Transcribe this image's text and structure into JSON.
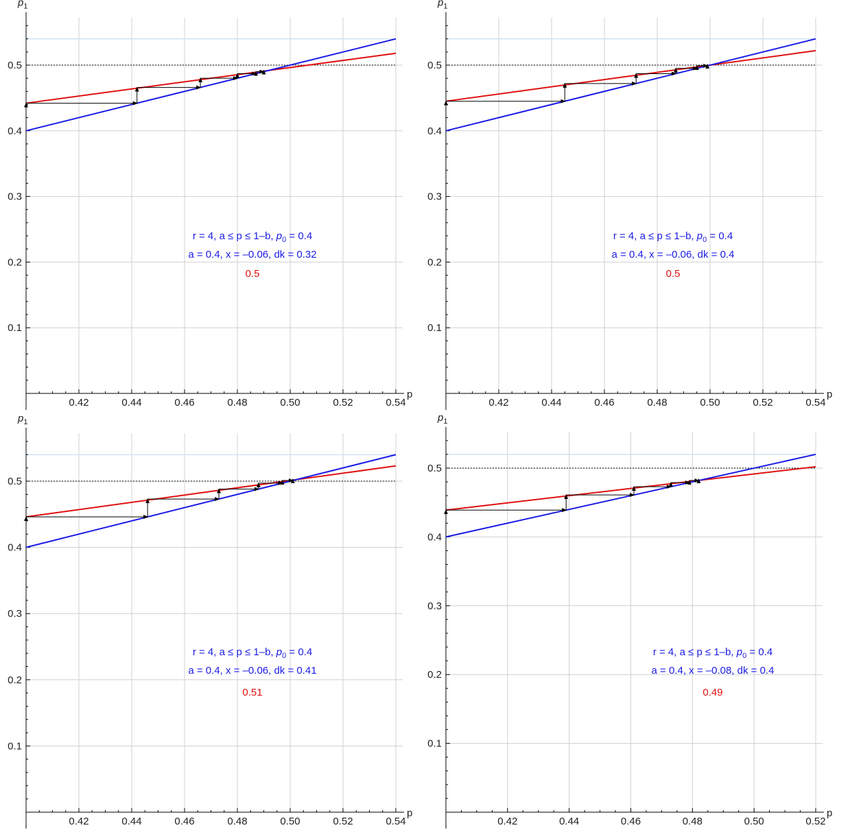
{
  "chart_data": [
    {
      "type": "line",
      "xlabel": "p",
      "ylabel": "p",
      "ylabel_sub": "1",
      "xlim": [
        0.4,
        0.545
      ],
      "ylim": [
        0.0,
        0.56
      ],
      "xticks": [
        "0.42",
        "0.44",
        "0.46",
        "0.48",
        "0.50",
        "0.52",
        "0.54"
      ],
      "yticks": [
        "0.1",
        "0.2",
        "0.3",
        "0.4",
        "0.5"
      ],
      "grid": true,
      "reference_lines": {
        "light_blue_y": 0.54,
        "dotted_y": 0.5
      },
      "series": [
        {
          "color": "#e01010",
          "x": [
            0.4,
            0.54
          ],
          "y": [
            0.442,
            0.518
          ]
        },
        {
          "color": "#1a1ae6",
          "x": [
            0.4,
            0.54
          ],
          "y": [
            0.4,
            0.54
          ]
        }
      ],
      "cobweb": [
        [
          0.4,
          0.442
        ],
        [
          0.442,
          0.466
        ],
        [
          0.466,
          0.48
        ],
        [
          0.48,
          0.487
        ],
        [
          0.487,
          0.49
        ],
        [
          0.49,
          0.492
        ]
      ],
      "annotation_line1": "r = 4, a ≤ p ≤ 1–b, ",
      "annotation_p0": "p",
      "annotation_p0_sub": "0",
      "annotation_p0_val": " = 0.4",
      "annotation_line2": "a = 0.4, x = –0.06, dk = 0.32",
      "annotation_value": "0.5"
    },
    {
      "type": "line",
      "xlabel": "p",
      "ylabel": "p",
      "ylabel_sub": "1",
      "xlim": [
        0.4,
        0.545
      ],
      "ylim": [
        0.0,
        0.56
      ],
      "xticks": [
        "0.42",
        "0.44",
        "0.46",
        "0.48",
        "0.50",
        "0.52",
        "0.54"
      ],
      "yticks": [
        "0.1",
        "0.2",
        "0.3",
        "0.4",
        "0.5"
      ],
      "grid": true,
      "reference_lines": {
        "light_blue_y": 0.54,
        "dotted_y": 0.5
      },
      "series": [
        {
          "color": "#e01010",
          "x": [
            0.4,
            0.54
          ],
          "y": [
            0.445,
            0.522
          ]
        },
        {
          "color": "#1a1ae6",
          "x": [
            0.4,
            0.54
          ],
          "y": [
            0.4,
            0.54
          ]
        }
      ],
      "cobweb": [
        [
          0.4,
          0.445
        ],
        [
          0.445,
          0.472
        ],
        [
          0.472,
          0.487
        ],
        [
          0.487,
          0.495
        ],
        [
          0.495,
          0.499
        ],
        [
          0.499,
          0.501
        ]
      ],
      "annotation_line1": "r = 4, a ≤ p ≤ 1–b, ",
      "annotation_p0": "p",
      "annotation_p0_sub": "0",
      "annotation_p0_val": " = 0.4",
      "annotation_line2": "a = 0.4, x = –0.06, dk = 0.4",
      "annotation_value": "0.5"
    },
    {
      "type": "line",
      "xlabel": "p",
      "ylabel": "p",
      "ylabel_sub": "1",
      "xlim": [
        0.4,
        0.545
      ],
      "ylim": [
        0.0,
        0.56
      ],
      "xticks": [
        "0.42",
        "0.44",
        "0.46",
        "0.48",
        "0.50",
        "0.52",
        "0.54"
      ],
      "yticks": [
        "0.1",
        "0.2",
        "0.3",
        "0.4",
        "0.5"
      ],
      "grid": true,
      "reference_lines": {
        "light_blue_y": 0.54,
        "dotted_y": 0.5
      },
      "series": [
        {
          "color": "#e01010",
          "x": [
            0.4,
            0.54
          ],
          "y": [
            0.446,
            0.523
          ]
        },
        {
          "color": "#1a1ae6",
          "x": [
            0.4,
            0.54
          ],
          "y": [
            0.4,
            0.54
          ]
        }
      ],
      "cobweb": [
        [
          0.4,
          0.446
        ],
        [
          0.446,
          0.473
        ],
        [
          0.473,
          0.488
        ],
        [
          0.488,
          0.497
        ],
        [
          0.497,
          0.501
        ],
        [
          0.501,
          0.503
        ]
      ],
      "annotation_line1": "r = 4, a ≤ p ≤ 1–b, ",
      "annotation_p0": "p",
      "annotation_p0_sub": "0",
      "annotation_p0_val": " = 0.4",
      "annotation_line2": "a = 0.4, x = –0.06, dk = 0.41",
      "annotation_value": "0.51"
    },
    {
      "type": "line",
      "xlabel": "p",
      "ylabel": "p",
      "ylabel_sub": "1",
      "xlim": [
        0.4,
        0.525
      ],
      "ylim": [
        0.0,
        0.54
      ],
      "xticks": [
        "0.42",
        "0.44",
        "0.46",
        "0.48",
        "0.50",
        "0.52"
      ],
      "yticks": [
        "0.1",
        "0.2",
        "0.3",
        "0.4",
        "0.5"
      ],
      "grid": true,
      "reference_lines": {
        "light_blue_y": 0.52,
        "dotted_y": 0.5
      },
      "series": [
        {
          "color": "#e01010",
          "x": [
            0.4,
            0.52
          ],
          "y": [
            0.439,
            0.502
          ]
        },
        {
          "color": "#1a1ae6",
          "x": [
            0.4,
            0.52
          ],
          "y": [
            0.4,
            0.52
          ]
        }
      ],
      "cobweb": [
        [
          0.4,
          0.439
        ],
        [
          0.439,
          0.461
        ],
        [
          0.461,
          0.473
        ],
        [
          0.473,
          0.479
        ],
        [
          0.479,
          0.482
        ],
        [
          0.482,
          0.484
        ]
      ],
      "annotation_line1": "r = 4, a ≤ p ≤ 1–b, ",
      "annotation_p0": "p",
      "annotation_p0_sub": "0",
      "annotation_p0_val": " = 0.4",
      "annotation_line2": "a = 0.4, x = –0.08, dk = 0.4",
      "annotation_value": "0.49"
    }
  ]
}
